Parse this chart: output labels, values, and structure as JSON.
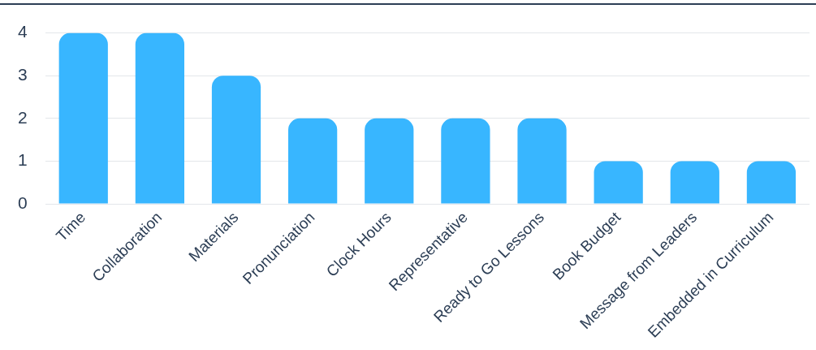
{
  "chart_data": {
    "type": "bar",
    "categories": [
      "Time",
      "Collaboration",
      "Materials",
      "Pronunciation",
      "Clock Hours",
      "Representative",
      "Ready to Go Lessons",
      "Book Budget",
      "Message from Leaders",
      "Embedded in Curriculum"
    ],
    "values": [
      4,
      4,
      3,
      2,
      2,
      2,
      2,
      1,
      1,
      1
    ],
    "color": "#38b6ff",
    "ylim": [
      0,
      4
    ],
    "yticks": [
      0,
      1,
      2,
      3,
      4
    ],
    "grid": "y",
    "legend": false
  }
}
